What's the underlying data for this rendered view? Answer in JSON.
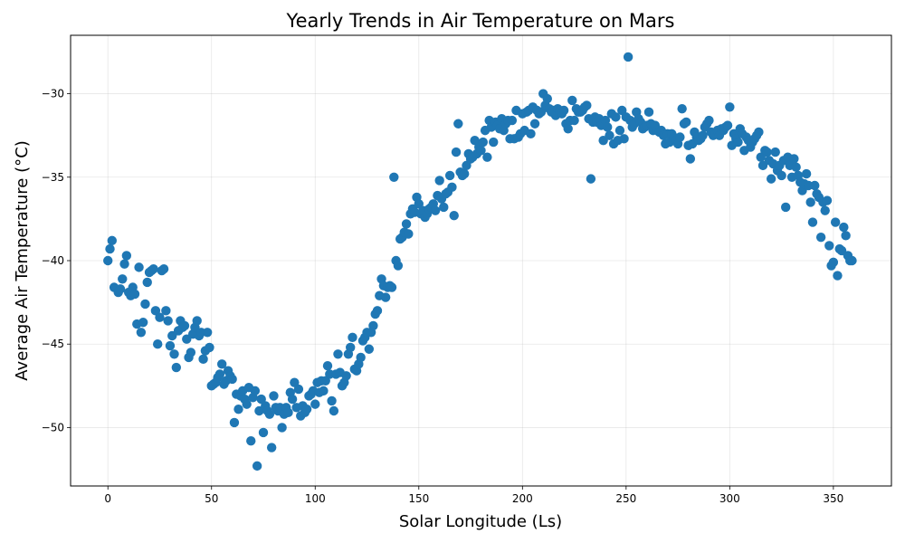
{
  "chart_data": {
    "type": "scatter",
    "title": "Yearly Trends in Air Temperature on Mars",
    "xlabel": "Solar Longitude (Ls)",
    "ylabel": "Average Air Temperature (°C)",
    "xlim": [
      -18,
      378
    ],
    "ylim": [
      -53.5,
      -26.5
    ],
    "xticks": [
      0,
      50,
      100,
      150,
      200,
      250,
      300,
      350
    ],
    "yticks": [
      -50,
      -45,
      -40,
      -35,
      -30
    ],
    "grid": true,
    "legend": "none",
    "marker_color": "#1f77b4",
    "points": [
      [
        0,
        -40.0
      ],
      [
        1,
        -39.3
      ],
      [
        2,
        -38.8
      ],
      [
        3,
        -41.6
      ],
      [
        5,
        -41.9
      ],
      [
        6,
        -41.7
      ],
      [
        7,
        -41.1
      ],
      [
        8,
        -40.2
      ],
      [
        9,
        -39.7
      ],
      [
        10,
        -41.9
      ],
      [
        11,
        -42.1
      ],
      [
        12,
        -41.6
      ],
      [
        13,
        -42.0
      ],
      [
        14,
        -43.8
      ],
      [
        15,
        -40.4
      ],
      [
        16,
        -44.3
      ],
      [
        17,
        -43.7
      ],
      [
        18,
        -42.6
      ],
      [
        19,
        -41.3
      ],
      [
        20,
        -40.7
      ],
      [
        21,
        -40.6
      ],
      [
        22,
        -40.5
      ],
      [
        23,
        -43.0
      ],
      [
        24,
        -45.0
      ],
      [
        25,
        -43.4
      ],
      [
        26,
        -40.6
      ],
      [
        27,
        -40.5
      ],
      [
        28,
        -43.0
      ],
      [
        29,
        -43.6
      ],
      [
        30,
        -45.1
      ],
      [
        31,
        -44.5
      ],
      [
        32,
        -45.6
      ],
      [
        33,
        -46.4
      ],
      [
        34,
        -44.2
      ],
      [
        35,
        -43.6
      ],
      [
        36,
        -44.0
      ],
      [
        37,
        -43.9
      ],
      [
        38,
        -44.7
      ],
      [
        39,
        -45.8
      ],
      [
        40,
        -45.5
      ],
      [
        41,
        -44.4
      ],
      [
        42,
        -44.0
      ],
      [
        43,
        -43.6
      ],
      [
        44,
        -44.5
      ],
      [
        45,
        -44.3
      ],
      [
        46,
        -45.9
      ],
      [
        47,
        -45.4
      ],
      [
        48,
        -44.3
      ],
      [
        49,
        -45.2
      ],
      [
        50,
        -47.5
      ],
      [
        51,
        -47.4
      ],
      [
        52,
        -47.3
      ],
      [
        53,
        -47.0
      ],
      [
        54,
        -46.8
      ],
      [
        55,
        -46.2
      ],
      [
        56,
        -47.4
      ],
      [
        57,
        -47.2
      ],
      [
        58,
        -46.6
      ],
      [
        59,
        -46.9
      ],
      [
        60,
        -47.1
      ],
      [
        61,
        -49.7
      ],
      [
        62,
        -48.0
      ],
      [
        63,
        -48.9
      ],
      [
        64,
        -48.1
      ],
      [
        65,
        -47.8
      ],
      [
        66,
        -48.3
      ],
      [
        67,
        -48.6
      ],
      [
        68,
        -47.6
      ],
      [
        69,
        -50.8
      ],
      [
        70,
        -48.2
      ],
      [
        71,
        -47.8
      ],
      [
        72,
        -52.3
      ],
      [
        73,
        -49.0
      ],
      [
        74,
        -48.3
      ],
      [
        75,
        -50.3
      ],
      [
        76,
        -48.7
      ],
      [
        77,
        -49.0
      ],
      [
        78,
        -49.2
      ],
      [
        79,
        -51.2
      ],
      [
        80,
        -48.1
      ],
      [
        81,
        -48.8
      ],
      [
        82,
        -49.0
      ],
      [
        83,
        -48.8
      ],
      [
        84,
        -50.0
      ],
      [
        85,
        -49.2
      ],
      [
        86,
        -48.8
      ],
      [
        87,
        -49.1
      ],
      [
        88,
        -47.9
      ],
      [
        89,
        -48.3
      ],
      [
        90,
        -47.3
      ],
      [
        91,
        -48.8
      ],
      [
        92,
        -47.7
      ],
      [
        93,
        -49.3
      ],
      [
        94,
        -48.7
      ],
      [
        95,
        -49.1
      ],
      [
        96,
        -48.9
      ],
      [
        97,
        -48.1
      ],
      [
        98,
        -48.0
      ],
      [
        99,
        -47.8
      ],
      [
        100,
        -48.6
      ],
      [
        101,
        -47.3
      ],
      [
        102,
        -47.9
      ],
      [
        103,
        -47.2
      ],
      [
        104,
        -47.8
      ],
      [
        105,
        -47.2
      ],
      [
        106,
        -46.3
      ],
      [
        107,
        -46.8
      ],
      [
        108,
        -48.4
      ],
      [
        109,
        -49.0
      ],
      [
        110,
        -46.8
      ],
      [
        111,
        -45.6
      ],
      [
        112,
        -46.7
      ],
      [
        113,
        -47.5
      ],
      [
        114,
        -47.3
      ],
      [
        115,
        -46.9
      ],
      [
        116,
        -45.6
      ],
      [
        117,
        -45.2
      ],
      [
        118,
        -44.6
      ],
      [
        119,
        -46.5
      ],
      [
        120,
        -46.6
      ],
      [
        121,
        -46.2
      ],
      [
        122,
        -45.8
      ],
      [
        123,
        -44.8
      ],
      [
        124,
        -44.6
      ],
      [
        125,
        -44.3
      ],
      [
        126,
        -45.3
      ],
      [
        127,
        -44.3
      ],
      [
        128,
        -43.9
      ],
      [
        129,
        -43.2
      ],
      [
        130,
        -43.0
      ],
      [
        131,
        -42.1
      ],
      [
        132,
        -41.1
      ],
      [
        133,
        -41.5
      ],
      [
        134,
        -42.2
      ],
      [
        135,
        -41.6
      ],
      [
        136,
        -41.5
      ],
      [
        137,
        -41.6
      ],
      [
        138,
        -35.0
      ],
      [
        139,
        -40.0
      ],
      [
        140,
        -40.3
      ],
      [
        141,
        -38.7
      ],
      [
        142,
        -38.6
      ],
      [
        143,
        -38.3
      ],
      [
        144,
        -37.8
      ],
      [
        145,
        -38.4
      ],
      [
        146,
        -37.2
      ],
      [
        147,
        -36.9
      ],
      [
        148,
        -37.1
      ],
      [
        149,
        -36.2
      ],
      [
        150,
        -36.6
      ],
      [
        151,
        -37.2
      ],
      [
        152,
        -37.0
      ],
      [
        153,
        -37.4
      ],
      [
        154,
        -37.2
      ],
      [
        155,
        -36.9
      ],
      [
        156,
        -36.8
      ],
      [
        157,
        -36.6
      ],
      [
        158,
        -37.0
      ],
      [
        159,
        -36.1
      ],
      [
        160,
        -35.2
      ],
      [
        161,
        -36.3
      ],
      [
        162,
        -36.8
      ],
      [
        163,
        -36.0
      ],
      [
        164,
        -35.9
      ],
      [
        165,
        -34.9
      ],
      [
        166,
        -35.6
      ],
      [
        167,
        -37.3
      ],
      [
        168,
        -33.5
      ],
      [
        169,
        -31.8
      ],
      [
        170,
        -34.7
      ],
      [
        171,
        -34.9
      ],
      [
        172,
        -34.8
      ],
      [
        173,
        -34.3
      ],
      [
        174,
        -33.6
      ],
      [
        175,
        -33.9
      ],
      [
        176,
        -33.8
      ],
      [
        177,
        -32.8
      ],
      [
        178,
        -33.6
      ],
      [
        179,
        -33.2
      ],
      [
        180,
        -33.4
      ],
      [
        181,
        -32.9
      ],
      [
        182,
        -32.2
      ],
      [
        183,
        -33.8
      ],
      [
        184,
        -31.6
      ],
      [
        185,
        -32.0
      ],
      [
        186,
        -32.9
      ],
      [
        187,
        -31.7
      ],
      [
        188,
        -31.9
      ],
      [
        189,
        -32.1
      ],
      [
        190,
        -31.5
      ],
      [
        191,
        -32.2
      ],
      [
        192,
        -31.8
      ],
      [
        193,
        -31.6
      ],
      [
        194,
        -32.7
      ],
      [
        195,
        -31.6
      ],
      [
        196,
        -32.7
      ],
      [
        197,
        -31.0
      ],
      [
        198,
        -32.6
      ],
      [
        199,
        -32.4
      ],
      [
        200,
        -31.2
      ],
      [
        201,
        -32.2
      ],
      [
        202,
        -31.1
      ],
      [
        203,
        -31.0
      ],
      [
        204,
        -32.4
      ],
      [
        205,
        -30.8
      ],
      [
        206,
        -31.8
      ],
      [
        207,
        -31.0
      ],
      [
        208,
        -31.2
      ],
      [
        209,
        -31.1
      ],
      [
        210,
        -30.0
      ],
      [
        211,
        -30.7
      ],
      [
        212,
        -30.3
      ],
      [
        213,
        -30.9
      ],
      [
        214,
        -31.1
      ],
      [
        215,
        -31.0
      ],
      [
        216,
        -31.3
      ],
      [
        217,
        -30.9
      ],
      [
        218,
        -31.0
      ],
      [
        219,
        -31.2
      ],
      [
        220,
        -31.0
      ],
      [
        221,
        -31.8
      ],
      [
        222,
        -32.1
      ],
      [
        223,
        -31.6
      ],
      [
        224,
        -30.4
      ],
      [
        225,
        -31.6
      ],
      [
        226,
        -30.9
      ],
      [
        227,
        -31.1
      ],
      [
        228,
        -31.1
      ],
      [
        229,
        -31.0
      ],
      [
        230,
        -30.8
      ],
      [
        231,
        -30.7
      ],
      [
        232,
        -31.5
      ],
      [
        233,
        -35.1
      ],
      [
        234,
        -31.7
      ],
      [
        235,
        -31.4
      ],
      [
        236,
        -31.7
      ],
      [
        237,
        -31.5
      ],
      [
        238,
        -31.9
      ],
      [
        239,
        -32.8
      ],
      [
        240,
        -31.6
      ],
      [
        241,
        -32.0
      ],
      [
        242,
        -32.5
      ],
      [
        243,
        -31.2
      ],
      [
        244,
        -33.0
      ],
      [
        245,
        -31.4
      ],
      [
        246,
        -32.8
      ],
      [
        247,
        -32.2
      ],
      [
        248,
        -31.0
      ],
      [
        249,
        -32.7
      ],
      [
        250,
        -31.4
      ],
      [
        251,
        -27.8
      ],
      [
        252,
        -31.6
      ],
      [
        253,
        -32.0
      ],
      [
        254,
        -31.8
      ],
      [
        255,
        -31.1
      ],
      [
        256,
        -31.5
      ],
      [
        257,
        -31.7
      ],
      [
        258,
        -32.1
      ],
      [
        259,
        -32.0
      ],
      [
        260,
        -31.9
      ],
      [
        261,
        -31.1
      ],
      [
        262,
        -31.8
      ],
      [
        263,
        -32.2
      ],
      [
        264,
        -31.9
      ],
      [
        265,
        -32.2
      ],
      [
        266,
        -32.3
      ],
      [
        267,
        -32.2
      ],
      [
        268,
        -32.5
      ],
      [
        269,
        -33.0
      ],
      [
        270,
        -32.4
      ],
      [
        271,
        -32.9
      ],
      [
        272,
        -32.4
      ],
      [
        273,
        -32.6
      ],
      [
        274,
        -32.8
      ],
      [
        275,
        -33.0
      ],
      [
        276,
        -32.6
      ],
      [
        277,
        -30.9
      ],
      [
        278,
        -31.8
      ],
      [
        279,
        -31.7
      ],
      [
        280,
        -33.1
      ],
      [
        281,
        -33.9
      ],
      [
        282,
        -33.0
      ],
      [
        283,
        -32.3
      ],
      [
        284,
        -32.6
      ],
      [
        285,
        -32.8
      ],
      [
        286,
        -32.7
      ],
      [
        287,
        -32.5
      ],
      [
        288,
        -32.0
      ],
      [
        289,
        -31.8
      ],
      [
        290,
        -31.6
      ],
      [
        291,
        -32.3
      ],
      [
        292,
        -32.5
      ],
      [
        293,
        -32.4
      ],
      [
        294,
        -32.2
      ],
      [
        295,
        -32.5
      ],
      [
        296,
        -32.1
      ],
      [
        297,
        -32.2
      ],
      [
        298,
        -32.0
      ],
      [
        299,
        -31.9
      ],
      [
        300,
        -30.8
      ],
      [
        301,
        -33.1
      ],
      [
        302,
        -32.4
      ],
      [
        303,
        -32.7
      ],
      [
        304,
        -32.9
      ],
      [
        305,
        -32.1
      ],
      [
        306,
        -32.4
      ],
      [
        307,
        -33.4
      ],
      [
        308,
        -32.6
      ],
      [
        309,
        -32.8
      ],
      [
        310,
        -33.2
      ],
      [
        311,
        -32.9
      ],
      [
        312,
        -32.7
      ],
      [
        313,
        -32.5
      ],
      [
        314,
        -32.3
      ],
      [
        315,
        -33.8
      ],
      [
        316,
        -34.3
      ],
      [
        317,
        -33.4
      ],
      [
        318,
        -33.5
      ],
      [
        319,
        -34.0
      ],
      [
        320,
        -35.1
      ],
      [
        321,
        -34.2
      ],
      [
        322,
        -33.5
      ],
      [
        323,
        -34.6
      ],
      [
        324,
        -34.3
      ],
      [
        325,
        -34.9
      ],
      [
        326,
        -34.0
      ],
      [
        327,
        -36.8
      ],
      [
        328,
        -33.8
      ],
      [
        329,
        -34.3
      ],
      [
        330,
        -35.0
      ],
      [
        331,
        -33.9
      ],
      [
        332,
        -34.4
      ],
      [
        333,
        -34.9
      ],
      [
        334,
        -35.3
      ],
      [
        335,
        -35.8
      ],
      [
        336,
        -35.4
      ],
      [
        337,
        -34.8
      ],
      [
        338,
        -35.5
      ],
      [
        339,
        -36.5
      ],
      [
        340,
        -37.7
      ],
      [
        341,
        -35.5
      ],
      [
        342,
        -36.0
      ],
      [
        343,
        -36.2
      ],
      [
        344,
        -38.6
      ],
      [
        345,
        -36.5
      ],
      [
        346,
        -37.0
      ],
      [
        347,
        -36.4
      ],
      [
        348,
        -39.1
      ],
      [
        349,
        -40.3
      ],
      [
        350,
        -40.1
      ],
      [
        351,
        -37.7
      ],
      [
        352,
        -40.9
      ],
      [
        353,
        -39.3
      ],
      [
        354,
        -39.4
      ],
      [
        355,
        -38.0
      ],
      [
        356,
        -38.5
      ],
      [
        357,
        -39.7
      ],
      [
        358,
        -40.0
      ],
      [
        359,
        -40.0
      ]
    ]
  }
}
